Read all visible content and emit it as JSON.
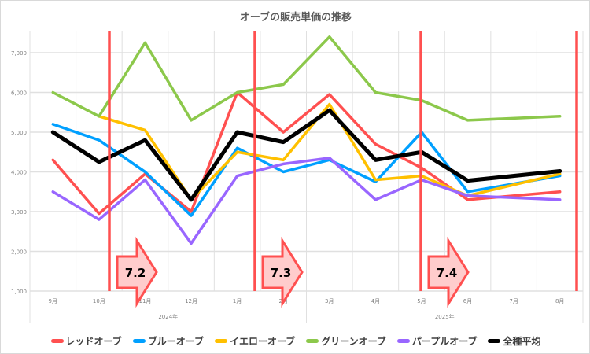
{
  "chart_data": {
    "type": "line",
    "title": "オーブの販売単価の推移",
    "categories": [
      "9月",
      "10月",
      "11月",
      "12月",
      "1月",
      "2月",
      "3月",
      "4月",
      "5月",
      "6月",
      "7月",
      "8月"
    ],
    "year_groups": [
      {
        "label": "2024年",
        "span": 6
      },
      {
        "label": "2025年",
        "span": 6
      }
    ],
    "ylim": [
      1000,
      7500
    ],
    "yticks": [
      1000,
      2000,
      3000,
      4000,
      5000,
      6000,
      7000
    ],
    "ytick_labels": [
      "1,000",
      "2,000",
      "3,000",
      "4,000",
      "5,000",
      "6,000",
      "7,000"
    ],
    "grid": true,
    "legend": "bottom",
    "series": [
      {
        "name": "レッドオーブ",
        "color": "#ff5050",
        "values": [
          4300,
          2950,
          3950,
          3000,
          6000,
          5000,
          5950,
          4700,
          4100,
          3300,
          null,
          3500
        ]
      },
      {
        "name": "ブルーオーブ",
        "color": "#00a0ff",
        "values": [
          5200,
          4800,
          4000,
          2900,
          4600,
          4000,
          4300,
          3750,
          5000,
          3500,
          null,
          3900
        ]
      },
      {
        "name": "イエローオーブ",
        "color": "#ffc000",
        "values": [
          null,
          5400,
          5050,
          3300,
          4500,
          4300,
          5700,
          3800,
          3900,
          3400,
          null,
          3950
        ]
      },
      {
        "name": "グリーンオーブ",
        "color": "#8cc84b",
        "values": [
          6000,
          5400,
          7250,
          5300,
          6000,
          6200,
          7400,
          6000,
          5800,
          5300,
          null,
          5400
        ]
      },
      {
        "name": "パープルオーブ",
        "color": "#9966ff",
        "values": [
          3500,
          2800,
          3800,
          2200,
          3900,
          4200,
          4350,
          3300,
          3800,
          3400,
          null,
          3300
        ]
      },
      {
        "name": "全種平均",
        "color": "#000000",
        "values": [
          5000,
          4250,
          4800,
          3300,
          5000,
          4750,
          5550,
          4300,
          4500,
          3780,
          null,
          4020
        ]
      }
    ],
    "annotations": [
      {
        "label": "7.2",
        "after_category": "10月"
      },
      {
        "label": "7.3",
        "after_category": "1月"
      },
      {
        "label": "7.4",
        "after_category": "5月"
      }
    ],
    "marker_line_color": "#ff5050"
  }
}
